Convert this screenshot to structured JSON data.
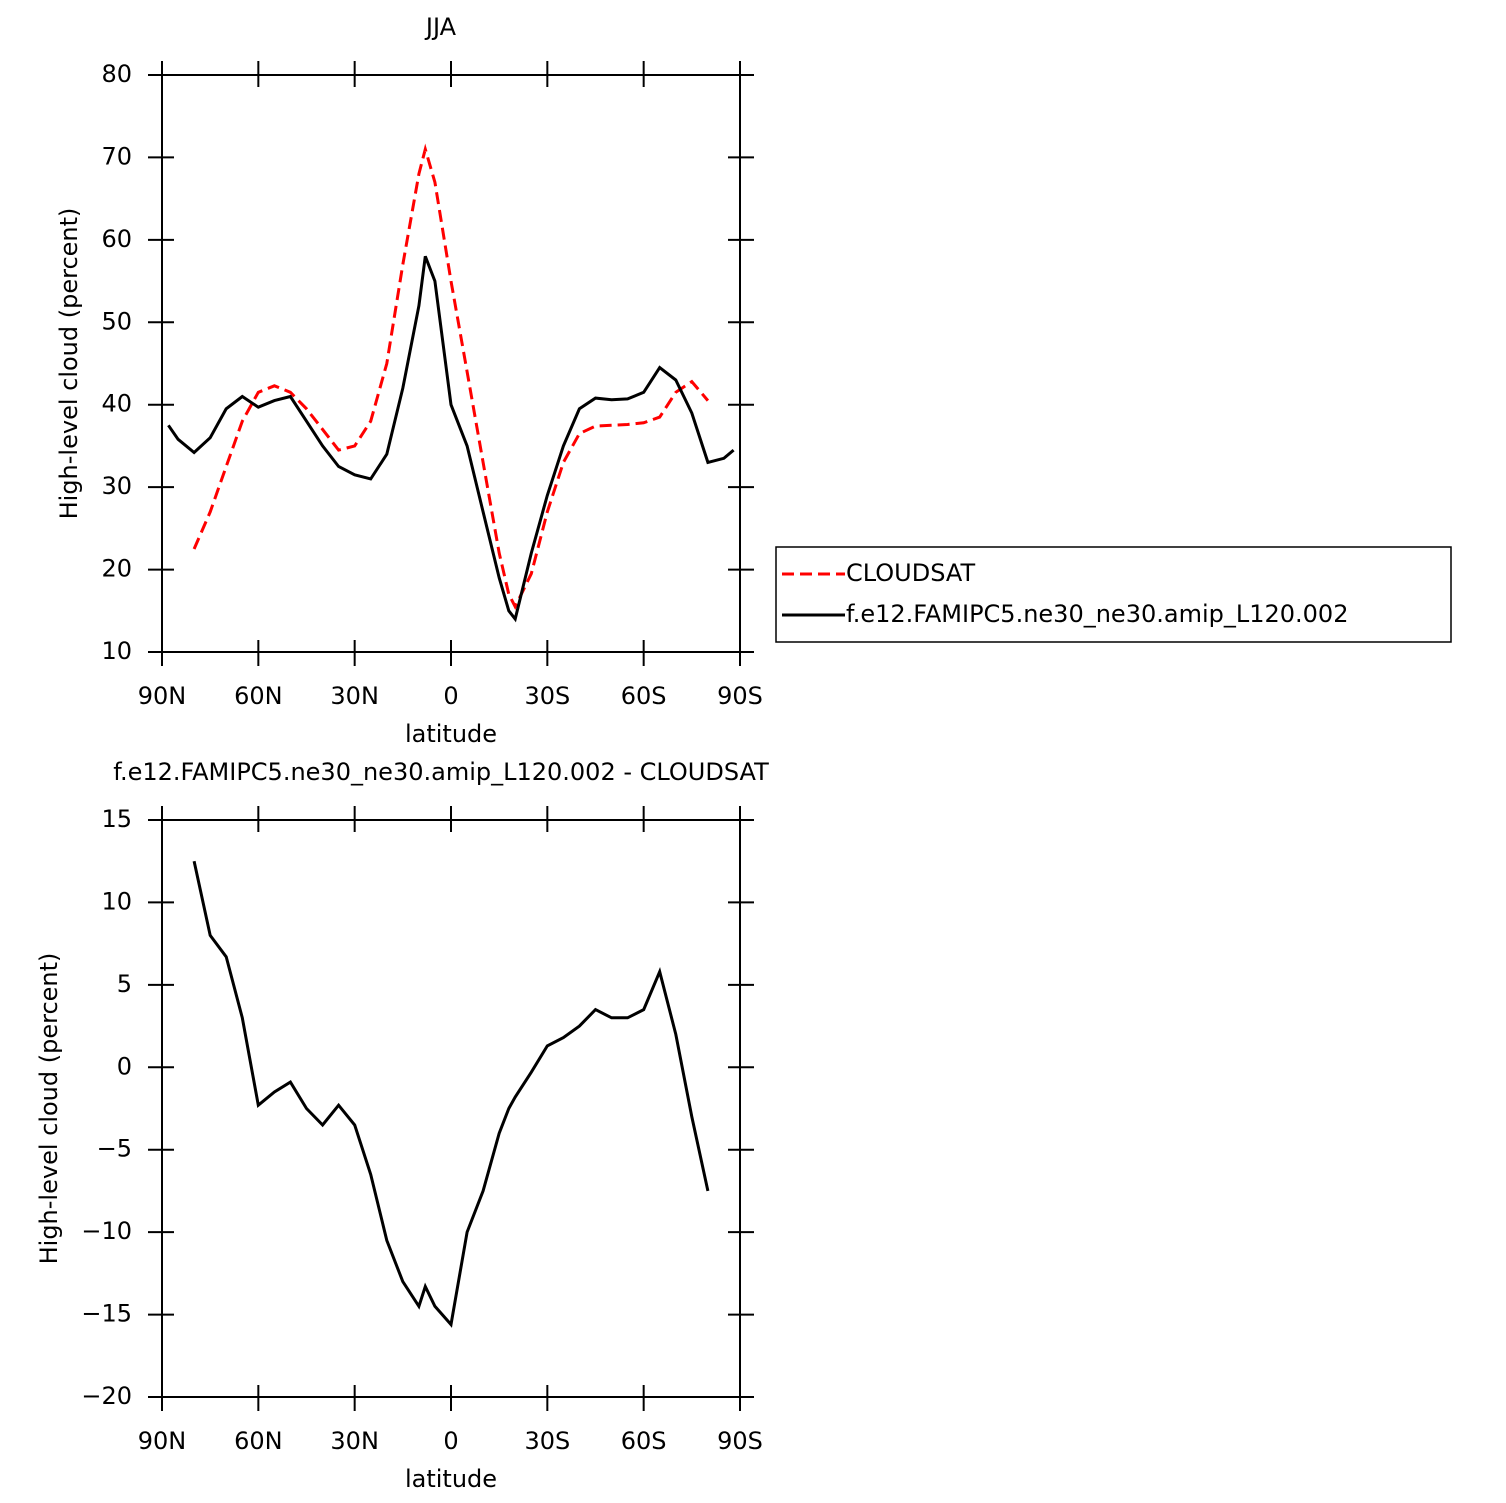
{
  "chart_data": [
    {
      "type": "line",
      "title": "JJA",
      "xlabel": "latitude",
      "ylabel": "High-level cloud (percent)",
      "x": [
        88,
        85,
        80,
        75,
        70,
        65,
        60,
        55,
        50,
        45,
        40,
        35,
        30,
        25,
        20,
        15,
        10,
        8,
        5,
        0,
        -5,
        -10,
        -15,
        -18,
        -20,
        -25,
        -30,
        -35,
        -40,
        -45,
        -50,
        -55,
        -60,
        -65,
        -70,
        -75,
        -80,
        -85,
        -88
      ],
      "xlim": [
        90,
        -90
      ],
      "xticks": [
        {
          "value": 90,
          "label": "90N"
        },
        {
          "value": 60,
          "label": "60N"
        },
        {
          "value": 30,
          "label": "30N"
        },
        0,
        {
          "value": -30,
          "label": "30S"
        },
        {
          "value": -60,
          "label": "60S"
        },
        {
          "value": -90,
          "label": "90S"
        }
      ],
      "ylim": [
        10,
        80
      ],
      "yticks": [
        10,
        20,
        30,
        40,
        50,
        60,
        70,
        80
      ],
      "legend": "outside-right",
      "series": [
        {
          "name": "CLOUDSAT",
          "color": "#ff0000",
          "linestyle": "dashed",
          "values": [
            null,
            null,
            22.5,
            27,
            32.5,
            38,
            41.5,
            42.3,
            41.5,
            39.5,
            37,
            34.5,
            35,
            38,
            45,
            57,
            68,
            71,
            67,
            55,
            44,
            33,
            22,
            17,
            15.5,
            19.5,
            27,
            33,
            36.5,
            37.4,
            37.5,
            37.6,
            37.8,
            38.5,
            41.5,
            42.8,
            40.5,
            null,
            null
          ]
        },
        {
          "name": "f.e12.FAMIPC5.ne30_ne30.amip_L120.002",
          "color": "#000000",
          "linestyle": "solid",
          "values": [
            37.5,
            35.8,
            34.2,
            36,
            39.5,
            41,
            39.7,
            40.5,
            41,
            38,
            35,
            32.5,
            31.5,
            31,
            34,
            42,
            52,
            58,
            55,
            40,
            35,
            27,
            19,
            15,
            14,
            22,
            29,
            35,
            39.5,
            40.8,
            40.6,
            40.7,
            41.5,
            44.5,
            43,
            39,
            33,
            33.5,
            34.5
          ]
        }
      ]
    },
    {
      "type": "line",
      "title": "f.e12.FAMIPC5.ne30_ne30.amip_L120.002 - CLOUDSAT",
      "xlabel": "latitude",
      "ylabel": "High-level cloud (percent)",
      "x": [
        88,
        85,
        80,
        75,
        70,
        65,
        60,
        55,
        50,
        45,
        40,
        35,
        30,
        25,
        20,
        15,
        10,
        8,
        5,
        0,
        -5,
        -10,
        -15,
        -18,
        -20,
        -25,
        -30,
        -35,
        -40,
        -45,
        -50,
        -55,
        -60,
        -65,
        -70,
        -75,
        -80,
        -85,
        -88
      ],
      "xlim": [
        90,
        -90
      ],
      "xticks": [
        {
          "value": 90,
          "label": "90N"
        },
        {
          "value": 60,
          "label": "60N"
        },
        {
          "value": 30,
          "label": "30N"
        },
        0,
        {
          "value": -30,
          "label": "30S"
        },
        {
          "value": -60,
          "label": "60S"
        },
        {
          "value": -90,
          "label": "90S"
        }
      ],
      "ylim": [
        -20,
        15
      ],
      "yticks": [
        {
          "value": -20,
          "label": "−20"
        },
        {
          "value": -15,
          "label": "−15"
        },
        {
          "value": -10,
          "label": "−10"
        },
        {
          "value": -5,
          "label": "−5"
        },
        0,
        5,
        10,
        15
      ],
      "series": [
        {
          "color": "#000000",
          "linestyle": "solid",
          "values": [
            null,
            null,
            12.5,
            8,
            6.7,
            3,
            -2.3,
            -1.5,
            -0.9,
            -2.5,
            -3.5,
            -2.3,
            -3.5,
            -6.5,
            -10.5,
            -13,
            -14.5,
            -13.3,
            -14.5,
            -15.6,
            -10,
            -7.5,
            -4,
            -2.5,
            -1.8,
            -0.3,
            1.3,
            1.8,
            2.5,
            3.5,
            3,
            3,
            3.5,
            5.8,
            2,
            -3,
            -7.5,
            null,
            null
          ]
        }
      ]
    }
  ]
}
